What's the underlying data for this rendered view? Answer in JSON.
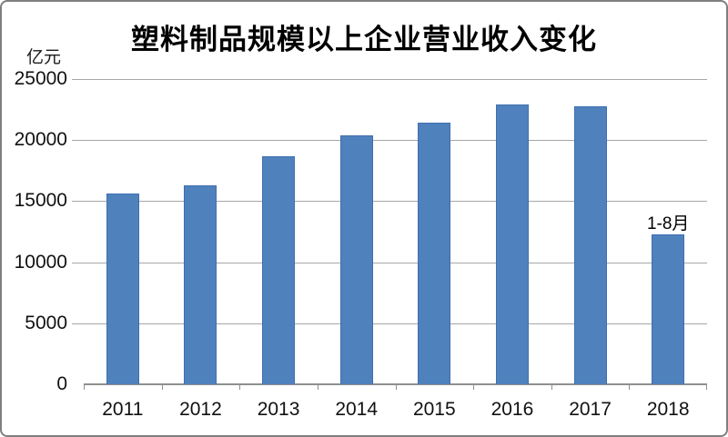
{
  "chart_data": {
    "type": "bar",
    "title": "塑料制品规模以上企业营业收入变化",
    "ylabel": "亿元",
    "xlabel": "",
    "categories": [
      "2011",
      "2012",
      "2013",
      "2014",
      "2015",
      "2016",
      "2017",
      "2018"
    ],
    "values": [
      15600,
      16300,
      18700,
      20400,
      21400,
      22900,
      22800,
      12250
    ],
    "yticks": [
      0,
      5000,
      10000,
      15000,
      20000,
      25000
    ],
    "ylim": [
      0,
      25000
    ],
    "grid": true,
    "legend_position": "none",
    "annotation": {
      "category": "2018",
      "text": "1-8月"
    },
    "colors": {
      "bar_fill": "#4f81bd",
      "bar_border": "#3f6fae",
      "gridline": "#a6a6a6",
      "axis": "#8f8f8f",
      "frame_border": "#7f7f7f",
      "text": "#111111"
    }
  }
}
